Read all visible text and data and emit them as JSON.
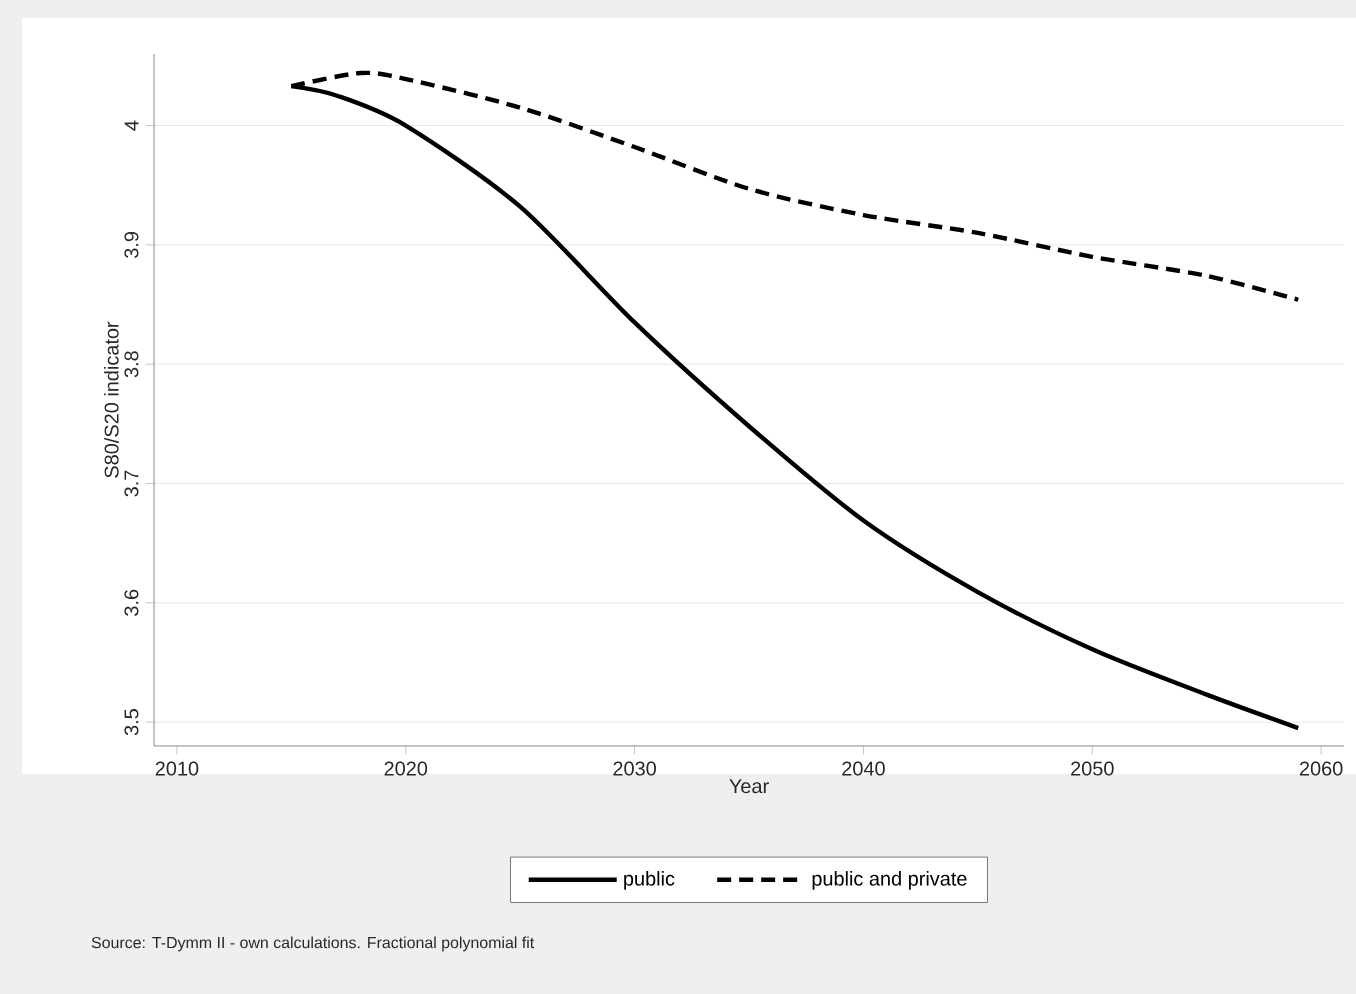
{
  "chart_data": {
    "type": "line",
    "xlabel": "Year",
    "ylabel": "S80/S20 indicator",
    "xlim": [
      2009,
      2061
    ],
    "ylim": [
      3.48,
      4.06
    ],
    "xticks": [
      2010,
      2020,
      2030,
      2040,
      2050,
      2060
    ],
    "yticks": [
      3.5,
      3.6,
      3.7,
      3.8,
      3.9,
      4
    ],
    "grid": "y",
    "legend": "bottom",
    "annotations": [
      "Source: T-Dymm II - own calculations. Fractional polynomial fit"
    ],
    "series": [
      {
        "name": "public",
        "color": "#000000",
        "line_style": "solid",
        "x": [
          2015,
          2017,
          2020,
          2025,
          2030,
          2035,
          2040,
          2045,
          2050,
          2055,
          2059
        ],
        "values": [
          4.033,
          4.025,
          4.0,
          3.932,
          3.835,
          3.748,
          3.669,
          3.609,
          3.561,
          3.523,
          3.495
        ]
      },
      {
        "name": "public and private",
        "color": "#000000",
        "line_style": "dashed",
        "x": [
          2015,
          2018,
          2020,
          2025,
          2030,
          2035,
          2040,
          2045,
          2050,
          2055,
          2059
        ],
        "values": [
          4.033,
          4.044,
          4.039,
          4.015,
          3.982,
          3.947,
          3.925,
          3.91,
          3.89,
          3.874,
          3.854
        ]
      }
    ]
  }
}
